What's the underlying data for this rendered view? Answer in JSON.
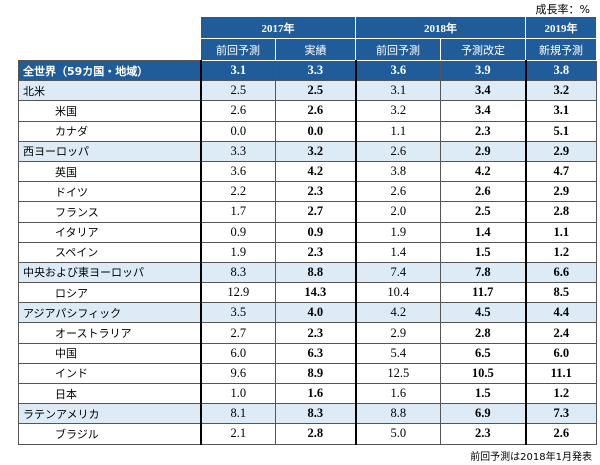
{
  "note": "成長率：%",
  "header": {
    "groups": [
      {
        "year": "2017年",
        "columns": [
          "前回予測",
          "実績"
        ]
      },
      {
        "year": "2018年",
        "columns": [
          "前回予測",
          "予測改定"
        ]
      },
      {
        "year": "2019年",
        "columns": [
          "新規予測"
        ]
      }
    ]
  },
  "table": {
    "rows": [
      {
        "label": "全世界（59カ国・地域）",
        "style": "total",
        "values": [
          "3.1",
          "3.3",
          "3.6",
          "3.9",
          "3.8"
        ]
      },
      {
        "label": "北米",
        "style": "region",
        "values": [
          "2.5",
          "2.5",
          "3.1",
          "3.4",
          "3.2"
        ]
      },
      {
        "label": "米国",
        "style": "country",
        "values": [
          "2.6",
          "2.6",
          "3.2",
          "3.4",
          "3.1"
        ]
      },
      {
        "label": "カナダ",
        "style": "country",
        "values": [
          "0.0",
          "0.0",
          "1.1",
          "2.3",
          "5.1"
        ]
      },
      {
        "label": "西ヨーロッパ",
        "style": "region",
        "values": [
          "3.3",
          "3.2",
          "2.6",
          "2.9",
          "2.9"
        ]
      },
      {
        "label": "英国",
        "style": "country",
        "values": [
          "3.6",
          "4.2",
          "3.8",
          "4.2",
          "4.7"
        ]
      },
      {
        "label": "ドイツ",
        "style": "country",
        "values": [
          "2.2",
          "2.3",
          "2.6",
          "2.6",
          "2.9"
        ]
      },
      {
        "label": "フランス",
        "style": "country",
        "values": [
          "1.7",
          "2.7",
          "2.0",
          "2.5",
          "2.8"
        ]
      },
      {
        "label": "イタリア",
        "style": "country",
        "values": [
          "0.9",
          "0.9",
          "1.9",
          "1.4",
          "1.1"
        ]
      },
      {
        "label": "スペイン",
        "style": "country",
        "values": [
          "1.9",
          "2.3",
          "1.4",
          "1.5",
          "1.2"
        ]
      },
      {
        "label": "中央および東ヨーロッパ",
        "style": "region",
        "values": [
          "8.3",
          "8.8",
          "7.4",
          "7.8",
          "6.6"
        ]
      },
      {
        "label": "ロシア",
        "style": "country",
        "values": [
          "12.9",
          "14.3",
          "10.4",
          "11.7",
          "8.5"
        ]
      },
      {
        "label": "アジアパシフィック",
        "style": "region",
        "values": [
          "3.5",
          "4.0",
          "4.2",
          "4.5",
          "4.4"
        ]
      },
      {
        "label": "オーストラリア",
        "style": "country",
        "values": [
          "2.7",
          "2.3",
          "2.9",
          "2.8",
          "2.4"
        ]
      },
      {
        "label": "中国",
        "style": "country",
        "values": [
          "6.0",
          "6.3",
          "5.4",
          "6.5",
          "6.0"
        ]
      },
      {
        "label": "インド",
        "style": "country",
        "values": [
          "9.6",
          "8.9",
          "12.5",
          "10.5",
          "11.1"
        ]
      },
      {
        "label": "日本",
        "style": "country",
        "values": [
          "1.0",
          "1.6",
          "1.6",
          "1.5",
          "1.2"
        ]
      },
      {
        "label": "ラテンアメリカ",
        "style": "region",
        "values": [
          "8.1",
          "8.3",
          "8.8",
          "6.9",
          "7.3"
        ]
      },
      {
        "label": "ブラジル",
        "style": "country",
        "values": [
          "2.1",
          "2.8",
          "5.0",
          "2.3",
          "2.6"
        ]
      }
    ]
  },
  "footer": "前回予測は2018年1月発表"
}
